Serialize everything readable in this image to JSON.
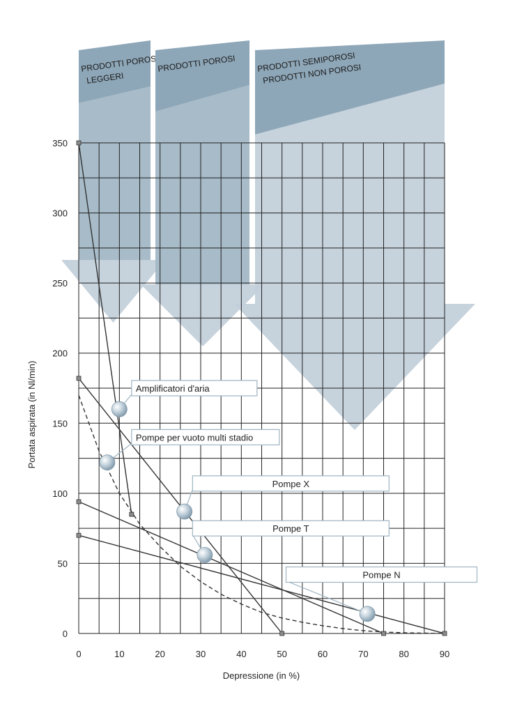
{
  "chart_data": {
    "type": "line",
    "xlabel": "Depressione (in %)",
    "ylabel": "Portata aspirata (in Nl/min)",
    "xlim": [
      0,
      90
    ],
    "ylim": [
      0,
      350
    ],
    "x_ticks": [
      "0",
      "10",
      "20",
      "30",
      "40",
      "50",
      "60",
      "70",
      "80",
      "90"
    ],
    "y_ticks": [
      "0",
      "50",
      "100",
      "150",
      "200",
      "250",
      "300",
      "350"
    ],
    "grid": true,
    "bands": [
      {
        "lines": [
          "PRODOTTI POROSI",
          "LEGGERI"
        ],
        "x_range": [
          0,
          18
        ]
      },
      {
        "lines": [
          "PRODOTTI POROSI"
        ],
        "x_range": [
          19,
          42
        ]
      },
      {
        "lines": [
          "PRODOTTI SEMIPOROSI",
          "PRODOTTI NON POROSI"
        ],
        "x_range": [
          44,
          90
        ]
      }
    ],
    "series": [
      {
        "name": "Amplificatori d'aria",
        "style": "solid",
        "points": [
          [
            0,
            350
          ],
          [
            13,
            85
          ]
        ],
        "marker": [
          10,
          160
        ],
        "label_pos": [
          13,
          175
        ]
      },
      {
        "name": "Pompe per vuoto multi stadio",
        "style": "dashed",
        "points": [
          [
            0,
            170
          ],
          [
            5,
            130
          ],
          [
            10,
            100
          ],
          [
            15,
            78
          ],
          [
            20,
            62
          ],
          [
            25,
            48
          ],
          [
            30,
            37
          ],
          [
            35,
            28
          ],
          [
            40,
            21
          ],
          [
            45,
            15
          ],
          [
            50,
            11
          ],
          [
            55,
            8
          ],
          [
            60,
            5.5
          ],
          [
            65,
            3.5
          ],
          [
            70,
            2
          ],
          [
            75,
            1
          ],
          [
            80,
            0.5
          ],
          [
            90,
            0
          ]
        ],
        "marker": [
          7,
          122
        ],
        "label_pos": [
          13,
          140
        ]
      },
      {
        "name": "Pompe X",
        "style": "solid",
        "points": [
          [
            0,
            182
          ],
          [
            50,
            0
          ]
        ],
        "marker": [
          26,
          87
        ],
        "label_pos": [
          28,
          107
        ]
      },
      {
        "name": "Pompe T",
        "style": "solid",
        "points": [
          [
            0,
            94
          ],
          [
            75,
            0
          ]
        ],
        "marker": [
          31,
          56
        ],
        "label_pos": [
          28,
          75
        ]
      },
      {
        "name": "Pompe N",
        "style": "solid",
        "points": [
          [
            0,
            70
          ],
          [
            90,
            0
          ]
        ],
        "marker": [
          71,
          14
        ],
        "label_pos": [
          51,
          42
        ]
      }
    ],
    "colors": {
      "band_dark": "#8ea7b8",
      "band_light": "#c3d0da",
      "grid": "#222222",
      "line": "#333333",
      "marker": "#b9c9d4",
      "callout_border": "#9fb4c2"
    }
  }
}
